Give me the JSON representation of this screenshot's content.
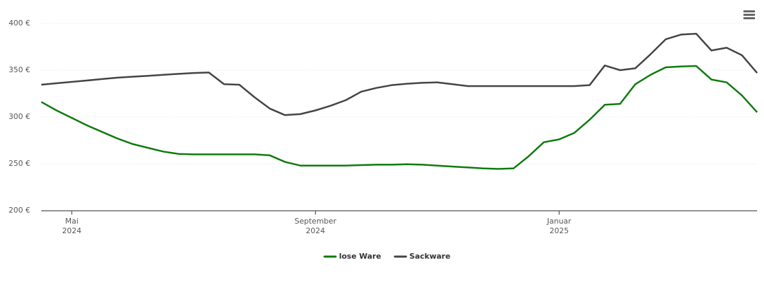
{
  "chart_data": {
    "type": "line",
    "categories": [
      null,
      null,
      "Mai 2024",
      null,
      null,
      null,
      null,
      null,
      null,
      null,
      null,
      null,
      null,
      null,
      null,
      null,
      null,
      null,
      "September 2024",
      null,
      null,
      null,
      null,
      null,
      null,
      null,
      null,
      null,
      null,
      null,
      null,
      null,
      null,
      null,
      "Januar 2025",
      null,
      null,
      null,
      null,
      null,
      null,
      null,
      null,
      null,
      null,
      null,
      null,
      null
    ],
    "series": [
      {
        "name": "lose Ware",
        "color": "#0e7a0d",
        "values": [
          316,
          307,
          299,
          291,
          284,
          277,
          271,
          267,
          263,
          260.5,
          260,
          260,
          260,
          260,
          260,
          259,
          252,
          248,
          248,
          248,
          248,
          248.5,
          249,
          249,
          249.5,
          249,
          248,
          247,
          246,
          245,
          244.5,
          245,
          258,
          273,
          276,
          283,
          297,
          313,
          314,
          335,
          345,
          353,
          354,
          354.5,
          340,
          337,
          323,
          305
        ]
      },
      {
        "name": "Sackware",
        "color": "#434348",
        "values": [
          334.5,
          336,
          337.5,
          339,
          340.5,
          342,
          343,
          344,
          345,
          346,
          347,
          347.5,
          335,
          334.5,
          321,
          309,
          302,
          303,
          307,
          312,
          318,
          327,
          331,
          334,
          335.5,
          336.5,
          337,
          335,
          333,
          333,
          333,
          333,
          333,
          333,
          333,
          333,
          334,
          355,
          350,
          352,
          367,
          383,
          388,
          389,
          371,
          374,
          366,
          347
        ]
      }
    ],
    "ylim": [
      200,
      400
    ],
    "yticks": [
      {
        "value": 200,
        "label": "200 €"
      },
      {
        "value": 250,
        "label": "250 €"
      },
      {
        "value": 300,
        "label": "300 €"
      },
      {
        "value": 350,
        "label": "350 €"
      },
      {
        "value": 400,
        "label": "400 €"
      }
    ],
    "grid": true
  }
}
